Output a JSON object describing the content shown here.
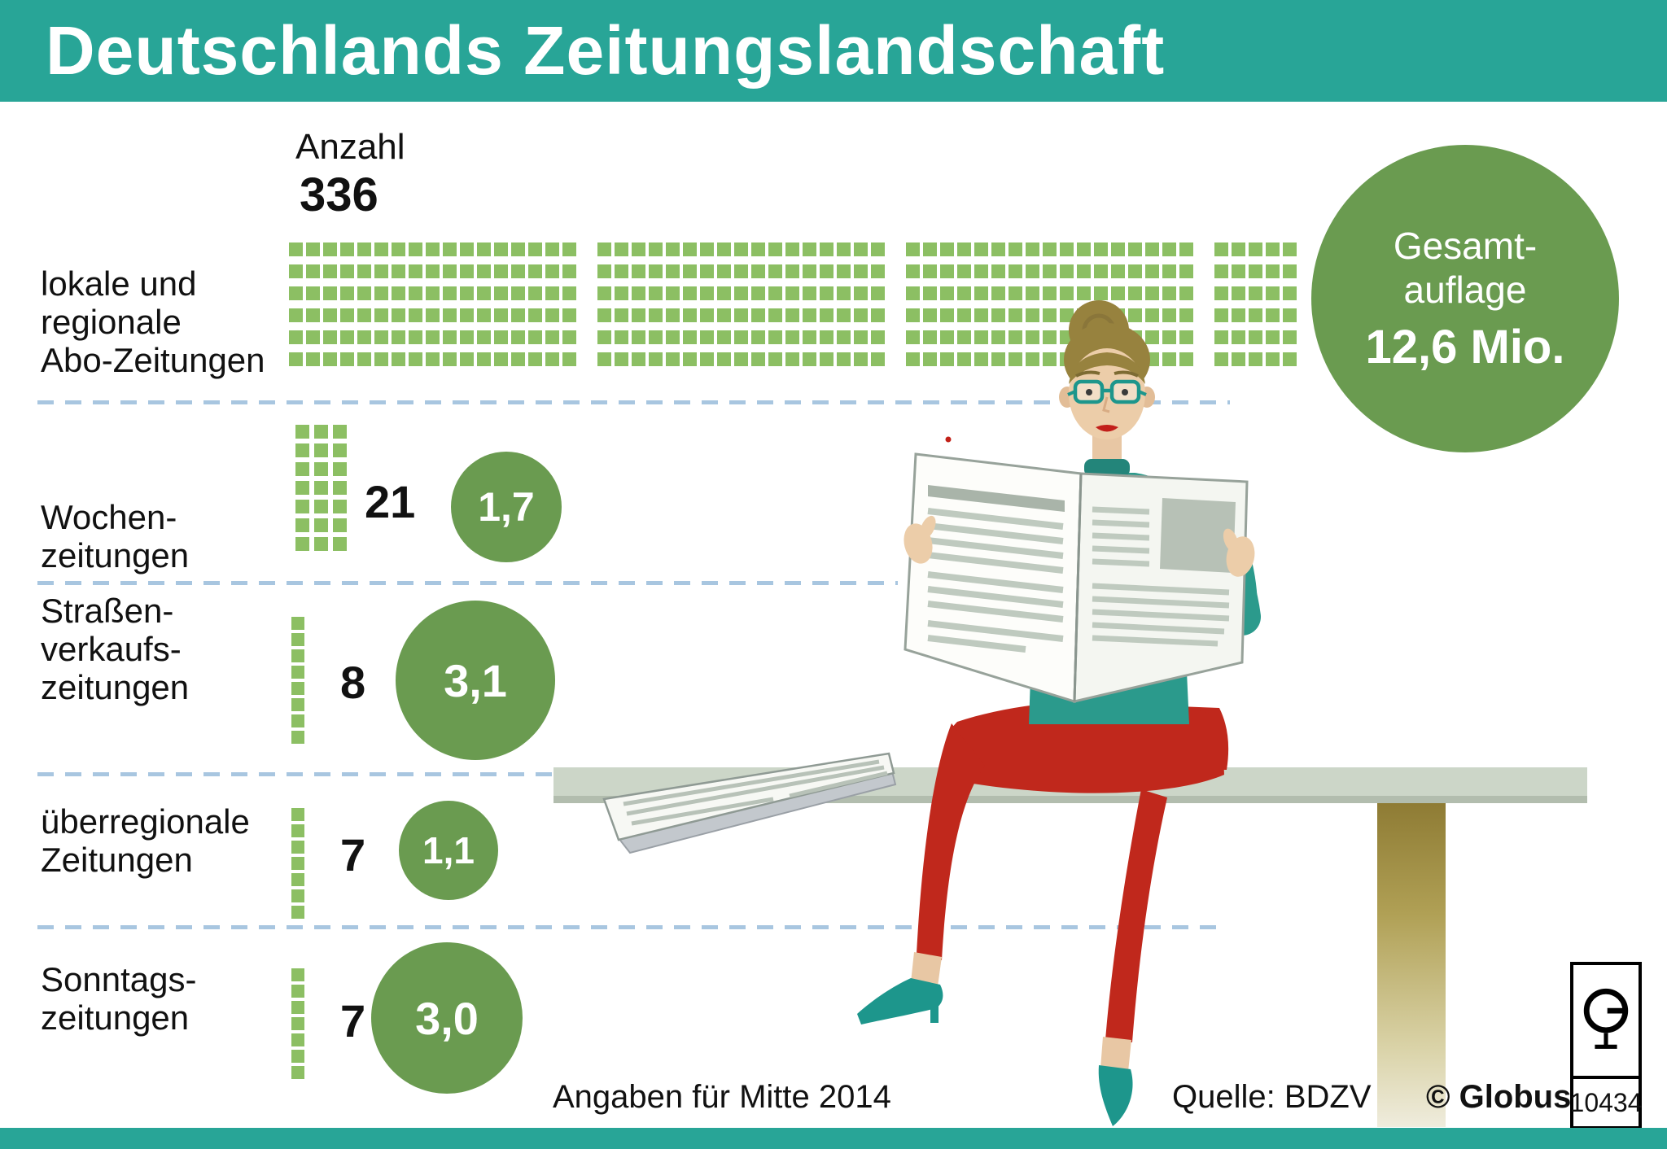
{
  "header": {
    "title": "Deutschlands Zeitungslandschaft"
  },
  "legend": {
    "count_label": "Anzahl"
  },
  "rows": [
    {
      "label_lines": [
        "lokale und",
        "regionale",
        "Abo-Zeitungen"
      ],
      "count": "336",
      "circulation": ""
    },
    {
      "label_lines": [
        "Wochen-",
        "zeitungen"
      ],
      "count": "21",
      "circulation": "1,7"
    },
    {
      "label_lines": [
        "Straßen-",
        "verkaufs-",
        "zeitungen"
      ],
      "count": "8",
      "circulation": "3,1"
    },
    {
      "label_lines": [
        "überregionale",
        "Zeitungen"
      ],
      "count": "7",
      "circulation": "1,1"
    },
    {
      "label_lines": [
        "Sonntags-",
        "zeitungen"
      ],
      "count": "7",
      "circulation": "3,0"
    }
  ],
  "total": {
    "line1": "Gesamt-",
    "line2": "auflage",
    "value": "12,6 Mio."
  },
  "footer": {
    "note": "Angaben für Mitte 2014",
    "source": "Quelle: BDZV",
    "credit": "© Globus",
    "number": "10434"
  },
  "colors": {
    "teal": "#28a597",
    "square_green": "#8cbf63",
    "circle_green": "#6a9b50",
    "dash_blue": "#a8c6e0"
  },
  "chart_data": {
    "type": "pictogram",
    "title": "Deutschlands Zeitungslandschaft",
    "categories": [
      "lokale und regionale Abo-Zeitungen",
      "Wochenzeitungen",
      "Straßenverkaufszeitungen",
      "überregionale Zeitungen",
      "Sonntagszeitungen"
    ],
    "series": [
      {
        "name": "Anzahl",
        "values": [
          336,
          21,
          8,
          7,
          7
        ]
      },
      {
        "name": "Auflage in Mio.",
        "values": [
          12.6,
          1.7,
          3.1,
          1.1,
          3.0
        ]
      }
    ],
    "annotations": {
      "total_circulation": "Gesamt-auflage 12,6 Mio."
    },
    "note": "Angaben für Mitte 2014",
    "source": "Quelle: BDZV",
    "legend_position": "none",
    "grid": false
  }
}
